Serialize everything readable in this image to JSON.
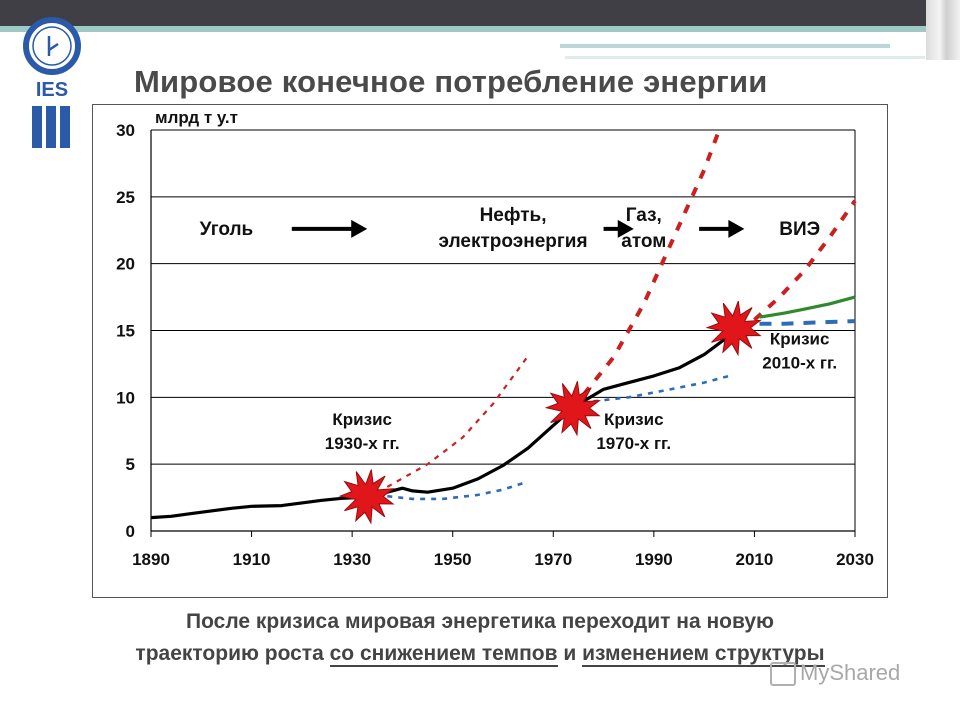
{
  "slide": {
    "title": "Мировое конечное потребление энергии",
    "logo_text": "IES",
    "footer_line1": "После кризиса мировая энергетика переходит на новую",
    "footer_line2_a": "траекторию роста ",
    "footer_line2_u1": "со снижением темпов",
    "footer_line2_b": " и ",
    "footer_line2_u2": "изменением структуры",
    "watermark": "MyShared"
  },
  "colors": {
    "title": "#4a4a4a",
    "history": "#000000",
    "forecast_red": "#cc1f1f",
    "forecast_blue": "#2e6db4",
    "forecast_green": "#2f8a2f",
    "burst": "#e0161b"
  },
  "chart_data": {
    "type": "line",
    "unit_label": "млрд т у.т",
    "xlim": [
      1890,
      2030
    ],
    "ylim": [
      0,
      30
    ],
    "x_ticks": [
      "1890",
      "1910",
      "1930",
      "1950",
      "1970",
      "1990",
      "2010",
      "2030"
    ],
    "y_ticks": [
      "0",
      "5",
      "10",
      "15",
      "20",
      "25",
      "30"
    ],
    "grid": "horizontal",
    "series": [
      {
        "style": "solid",
        "color": "black",
        "points": [
          [
            1890,
            1.0
          ],
          [
            1894,
            1.1
          ],
          [
            1898,
            1.3
          ],
          [
            1902,
            1.5
          ],
          [
            1906,
            1.7
          ],
          [
            1910,
            1.85
          ],
          [
            1916,
            1.9
          ],
          [
            1920,
            2.1
          ],
          [
            1924,
            2.3
          ],
          [
            1928,
            2.45
          ],
          [
            1931,
            2.5
          ],
          [
            1934,
            2.6
          ],
          [
            1937,
            2.9
          ],
          [
            1940,
            3.2
          ],
          [
            1942,
            3.0
          ],
          [
            1945,
            2.9
          ],
          [
            1950,
            3.2
          ],
          [
            1955,
            3.9
          ],
          [
            1960,
            4.9
          ],
          [
            1965,
            6.2
          ],
          [
            1970,
            7.9
          ],
          [
            1973,
            8.9
          ],
          [
            1976,
            9.7
          ],
          [
            1980,
            10.6
          ],
          [
            1985,
            11.1
          ],
          [
            1990,
            11.6
          ],
          [
            1995,
            12.2
          ],
          [
            2000,
            13.2
          ],
          [
            2005,
            14.6
          ],
          [
            2008,
            15.0
          ]
        ]
      },
      {
        "style": "dashed",
        "color": "red",
        "points": [
          [
            1937,
            3.3
          ],
          [
            1945,
            5.0
          ],
          [
            1952,
            7.0
          ],
          [
            1958,
            9.5
          ],
          [
            1965,
            13.1
          ]
        ]
      },
      {
        "style": "dashed",
        "color": "blue",
        "points": [
          [
            1937,
            2.6
          ],
          [
            1942,
            2.4
          ],
          [
            1948,
            2.4
          ],
          [
            1955,
            2.7
          ],
          [
            1960,
            3.1
          ],
          [
            1965,
            3.7
          ]
        ]
      },
      {
        "style": "dashed",
        "color": "red",
        "points": [
          [
            1976,
            10.2
          ],
          [
            1982,
            13.0
          ],
          [
            1988,
            17.0
          ],
          [
            1994,
            22.0
          ],
          [
            2000,
            27.0
          ],
          [
            2003,
            30.0
          ]
        ]
      },
      {
        "style": "dashed",
        "color": "blue",
        "points": [
          [
            1978,
            9.7
          ],
          [
            1985,
            10.0
          ],
          [
            1992,
            10.5
          ],
          [
            2000,
            11.1
          ],
          [
            2005,
            11.6
          ]
        ]
      },
      {
        "style": "dashed",
        "color": "red",
        "points": [
          [
            2010,
            15.8
          ],
          [
            2015,
            17.5
          ],
          [
            2020,
            19.5
          ],
          [
            2025,
            22.0
          ],
          [
            2030,
            24.7
          ]
        ]
      },
      {
        "style": "solid",
        "color": "green",
        "points": [
          [
            2011,
            16.0
          ],
          [
            2016,
            16.3
          ],
          [
            2020,
            16.6
          ],
          [
            2025,
            17.0
          ],
          [
            2030,
            17.5
          ]
        ]
      },
      {
        "style": "dashed",
        "color": "blue",
        "points": [
          [
            2011,
            15.5
          ],
          [
            2016,
            15.5
          ],
          [
            2022,
            15.6
          ],
          [
            2030,
            15.7
          ]
        ]
      }
    ],
    "crises": [
      {
        "x": 1933,
        "y": 2.6,
        "label_line1": "Кризис",
        "label_line2": "1930-х гг.",
        "label_x": 1932,
        "label_y": 7.5
      },
      {
        "x": 1974,
        "y": 9.2,
        "label_line1": "Кризис",
        "label_line2": "1970-х гг.",
        "label_x": 1986,
        "label_y": 7.5
      },
      {
        "x": 2006,
        "y": 15.2,
        "label_line1": "Кризис",
        "label_line2": "2010-х гг.",
        "label_x": 2019,
        "label_y": 13.5
      }
    ],
    "stages": [
      {
        "line1": "Уголь",
        "line2": "",
        "x": 1905,
        "y": 22.6
      },
      {
        "line1": "Нефть,",
        "line2": "электроэнергия",
        "x": 1962,
        "y": 23.5
      },
      {
        "line1": "Газ,",
        "line2": "атом",
        "x": 1988,
        "y": 23.5
      },
      {
        "line1": "ВИЭ",
        "line2": "",
        "x": 2019,
        "y": 22.6
      }
    ],
    "stage_arrows": [
      {
        "from": 1918,
        "to": 1933,
        "y": 22.6
      },
      {
        "from": 1980,
        "to": 1986,
        "y": 22.6
      },
      {
        "from": 1999,
        "to": 2008,
        "y": 22.6
      }
    ]
  }
}
